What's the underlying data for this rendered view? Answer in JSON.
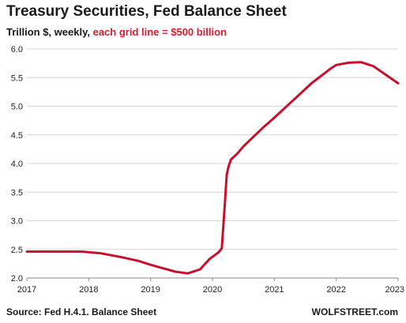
{
  "header": {
    "title": "Treasury Securities, Fed Balance Sheet",
    "subtitle_part1": "Trillion $, weekly, ",
    "subtitle_part2": "each grid line = $500 billion"
  },
  "footer": {
    "source": "Source: Fed H.4.1. Balance Sheet",
    "brand": "WOLFSTREET.com"
  },
  "colors": {
    "line": "#c8102e",
    "grid": "#d4d4d4",
    "axis": "#888888",
    "accent_text": "#d0202e"
  },
  "chart_data": {
    "type": "line",
    "title": "Treasury Securities, Fed Balance Sheet",
    "ylabel": "Trillion $",
    "xlabel": "",
    "ylim": [
      2.0,
      6.0
    ],
    "xlim": [
      2017.0,
      2023.0
    ],
    "y_ticks": [
      "2.0",
      "2.5",
      "3.0",
      "3.5",
      "4.0",
      "4.5",
      "5.0",
      "5.5",
      "6.0"
    ],
    "x_ticks": [
      "2017",
      "2018",
      "2019",
      "2020",
      "2021",
      "2022",
      "2023"
    ],
    "grid": true,
    "series": [
      {
        "x": [
          2017.0,
          2017.5,
          2017.9,
          2018.2,
          2018.5,
          2018.8,
          2019.0,
          2019.2,
          2019.4,
          2019.6,
          2019.8,
          2019.95,
          2020.1,
          2020.15,
          2020.2,
          2020.23,
          2020.26,
          2020.3,
          2020.4,
          2020.5,
          2020.8,
          2021.0,
          2021.3,
          2021.6,
          2021.9,
          2022.0,
          2022.2,
          2022.4,
          2022.6,
          2022.8,
          2023.0
        ],
        "y": [
          2.46,
          2.46,
          2.46,
          2.43,
          2.37,
          2.3,
          2.23,
          2.17,
          2.11,
          2.08,
          2.15,
          2.33,
          2.45,
          2.52,
          3.3,
          3.8,
          3.95,
          4.07,
          4.17,
          4.3,
          4.61,
          4.8,
          5.1,
          5.4,
          5.65,
          5.72,
          5.76,
          5.77,
          5.7,
          5.55,
          5.4
        ]
      }
    ]
  }
}
